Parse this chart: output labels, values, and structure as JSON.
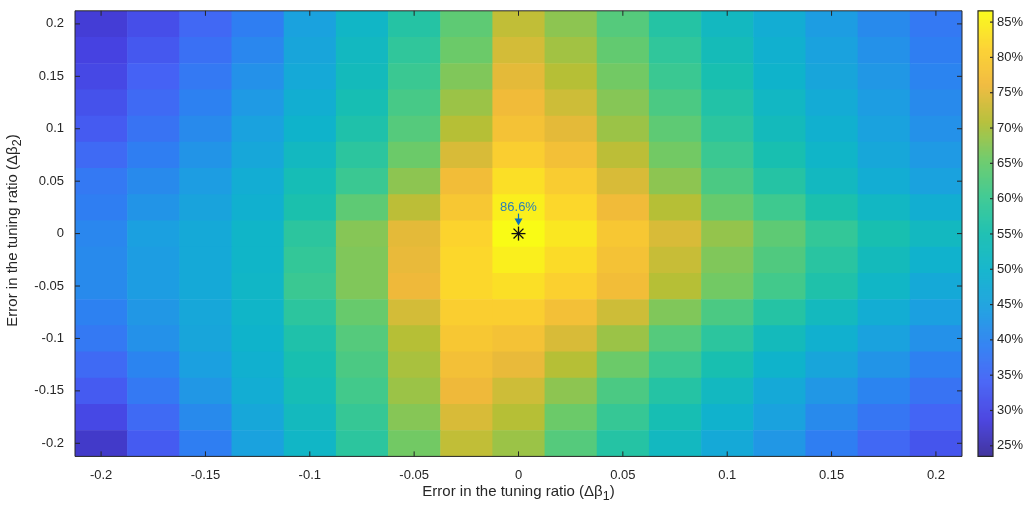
{
  "chart_data": {
    "type": "heatmap",
    "xlabel": "Error in the tuning ratio (Δβ$_{1}$)",
    "ylabel": "Error in the tuning ratio (Δβ$_{2}$)",
    "categories": [
      "-0.2",
      null,
      "-0.15",
      null,
      "-0.1",
      null,
      "-0.05",
      null,
      "0",
      null,
      "0.05",
      null,
      "0.1",
      null,
      "0.15",
      null,
      "0.2"
    ],
    "y_categories": [
      "0.2",
      null,
      "0.15",
      null,
      "0.1",
      null,
      "0.05",
      null,
      "0",
      null,
      "-0.05",
      null,
      "-0.1",
      null,
      "-0.15",
      null,
      "-0.2"
    ],
    "cells": [
      [
        28,
        31,
        35,
        39,
        45,
        51,
        57,
        64,
        72,
        68,
        63,
        57,
        52,
        48,
        44,
        41,
        38
      ],
      [
        29,
        32.5,
        36.5,
        40.5,
        46,
        52,
        58.5,
        65.5,
        73.5,
        69.5,
        64.5,
        58.5,
        53.5,
        49,
        45,
        42,
        39
      ],
      [
        30,
        34,
        38,
        42,
        47,
        53,
        60,
        67,
        75,
        71,
        66,
        60,
        55,
        50,
        46,
        43,
        40
      ],
      [
        31.5,
        35.5,
        39.5,
        43.5,
        48.5,
        54.5,
        61.5,
        69,
        76.5,
        73,
        67.5,
        62,
        56.5,
        51.5,
        47.5,
        44,
        41
      ],
      [
        33,
        37,
        41,
        45,
        50,
        56,
        63,
        71,
        78,
        75,
        69,
        64,
        58,
        53,
        49,
        45,
        42
      ],
      [
        35.5,
        39,
        42.5,
        46.5,
        52,
        58,
        65.5,
        74,
        80.5,
        77.5,
        71.5,
        66,
        60,
        55,
        50.5,
        46.5,
        43.5
      ],
      [
        38,
        41,
        44,
        48,
        54,
        60,
        68,
        77,
        83,
        80,
        74,
        68,
        62,
        57,
        52,
        48,
        45
      ],
      [
        39,
        42.5,
        45.5,
        49,
        55.5,
        64,
        71.5,
        79,
        85,
        82,
        76.5,
        71,
        65,
        60.5,
        55.5,
        51.5,
        48.5
      ],
      [
        40.5,
        44.5,
        47,
        50.5,
        58,
        67.5,
        75,
        81.5,
        86.6,
        84,
        79,
        74,
        68.5,
        64,
        59,
        55,
        52
      ],
      [
        41,
        44,
        47,
        50.5,
        59,
        67,
        75.5,
        82,
        85,
        82.5,
        78,
        72.5,
        67,
        62.5,
        57.5,
        53,
        49.5
      ],
      [
        41,
        44,
        47,
        51,
        60,
        67,
        76,
        82,
        83,
        81,
        77,
        71,
        66,
        61,
        56,
        51,
        47
      ],
      [
        39.5,
        43,
        46.5,
        50.5,
        58,
        65,
        73.5,
        80.5,
        80.5,
        77.5,
        73,
        67,
        62,
        57,
        52.5,
        48,
        44.5
      ],
      [
        38,
        42,
        46,
        50,
        56,
        63,
        71,
        79,
        78,
        74,
        69,
        63,
        58,
        53,
        49,
        45,
        42
      ],
      [
        35.5,
        40,
        44.5,
        49,
        55,
        62,
        70,
        77.5,
        75.5,
        71,
        65.5,
        60,
        55,
        50,
        46,
        42.5,
        39.5
      ],
      [
        33,
        38,
        43,
        48,
        54,
        61,
        69,
        76,
        73,
        68,
        62,
        57,
        52,
        47,
        43,
        40,
        37
      ],
      [
        30,
        35.5,
        41,
        46.5,
        52.5,
        59.5,
        67.5,
        74,
        71,
        65.5,
        59.5,
        54.5,
        49.5,
        45,
        41,
        37.5,
        34.5
      ],
      [
        27,
        33,
        39,
        45,
        51,
        58,
        66,
        72,
        69,
        63,
        57,
        52,
        47,
        43,
        39,
        35,
        32
      ]
    ],
    "clim": [
      23.5,
      86.6
    ],
    "cticks": [
      {
        "value": 25,
        "label": "25%"
      },
      {
        "value": 30,
        "label": "30%"
      },
      {
        "value": 35,
        "label": "35%"
      },
      {
        "value": 40,
        "label": "40%"
      },
      {
        "value": 45,
        "label": "45%"
      },
      {
        "value": 50,
        "label": "50%"
      },
      {
        "value": 55,
        "label": "55%"
      },
      {
        "value": 60,
        "label": "60%"
      },
      {
        "value": 65,
        "label": "65%"
      },
      {
        "value": 70,
        "label": "70%"
      },
      {
        "value": 75,
        "label": "75%"
      },
      {
        "value": 80,
        "label": "80%"
      },
      {
        "value": 85,
        "label": "85%"
      }
    ],
    "annotations": [
      {
        "text": "86.6%",
        "x": "0",
        "y": "0"
      }
    ]
  }
}
